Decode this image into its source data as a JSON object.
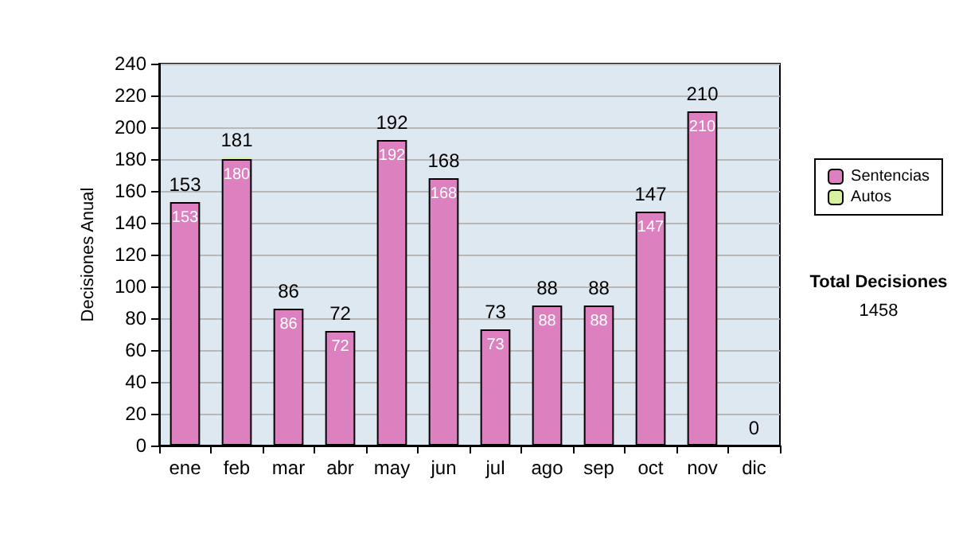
{
  "chart_data": {
    "type": "bar",
    "ylabel": "Decisiones Anual",
    "categories": [
      "ene",
      "feb",
      "mar",
      "abr",
      "may",
      "jun",
      "jul",
      "ago",
      "sep",
      "oct",
      "nov",
      "dic"
    ],
    "stacked": true,
    "series": [
      {
        "name": "Sentencias",
        "color": "#dd80c0",
        "values": [
          153,
          180,
          86,
          72,
          192,
          168,
          73,
          88,
          88,
          147,
          210,
          0
        ],
        "value_labels": [
          "153",
          "180",
          "86",
          "72",
          "192",
          "168",
          "73",
          "88",
          "88",
          "147",
          "210",
          null
        ]
      },
      {
        "name": "Autos",
        "color": "#d8f0a0",
        "values": [
          0,
          1,
          0,
          0,
          0,
          0,
          0,
          0,
          0,
          0,
          0,
          0
        ]
      }
    ],
    "totals": [
      "153",
      "181",
      "86",
      "72",
      "192",
      "168",
      "73",
      "88",
      "88",
      "147",
      "210",
      "0"
    ],
    "ylim": [
      0,
      240
    ],
    "yticks": [
      0,
      20,
      40,
      60,
      80,
      100,
      120,
      140,
      160,
      180,
      200,
      220,
      240
    ],
    "grid": "y",
    "legend": "right",
    "annotations": [
      "Total Decisiones",
      "1458"
    ]
  }
}
